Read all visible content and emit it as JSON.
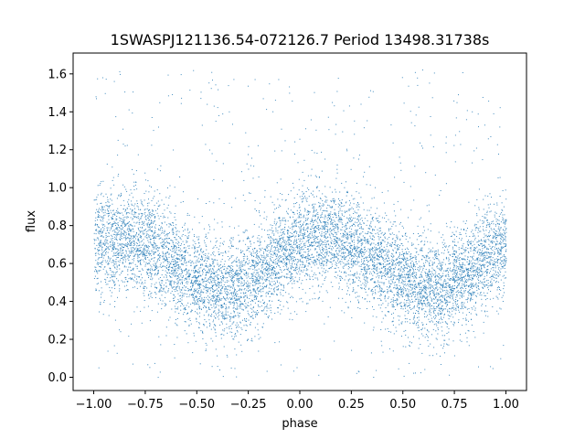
{
  "chart_data": {
    "type": "scatter",
    "title": "1SWASPJ121136.54-072126.7 Period 13498.31738s",
    "xlabel": "phase",
    "ylabel": "flux",
    "xlim": [
      -1.1,
      1.1
    ],
    "ylim": [
      -0.07,
      1.71
    ],
    "xticks": [
      -1.0,
      -0.75,
      -0.5,
      -0.25,
      0.0,
      0.25,
      0.5,
      0.75,
      1.0
    ],
    "xtick_labels": [
      "−1.00",
      "−0.75",
      "−0.50",
      "−0.25",
      "0.00",
      "0.25",
      "0.50",
      "0.75",
      "1.00"
    ],
    "yticks": [
      0.0,
      0.2,
      0.4,
      0.6,
      0.8,
      1.0,
      1.2,
      1.4,
      1.6
    ],
    "ytick_labels": [
      "0.0",
      "0.2",
      "0.4",
      "0.6",
      "0.8",
      "1.0",
      "1.2",
      "1.4",
      "1.6"
    ],
    "grid": false,
    "marker_color": "#1f77b4",
    "series": [
      {
        "phase_range": [
          -1.0,
          1.0
        ],
        "points_approx": 60000,
        "binned_median_flux": [
          {
            "phase": -1.0,
            "flux": 0.7
          },
          {
            "phase": -0.9,
            "flux": 0.74
          },
          {
            "phase": -0.8,
            "flux": 0.73
          },
          {
            "phase": -0.7,
            "flux": 0.68
          },
          {
            "phase": -0.6,
            "flux": 0.6
          },
          {
            "phase": -0.5,
            "flux": 0.52
          },
          {
            "phase": -0.4,
            "flux": 0.46
          },
          {
            "phase": -0.3,
            "flux": 0.47
          },
          {
            "phase": -0.2,
            "flux": 0.55
          },
          {
            "phase": -0.1,
            "flux": 0.64
          },
          {
            "phase": 0.0,
            "flux": 0.7
          },
          {
            "phase": 0.1,
            "flux": 0.74
          },
          {
            "phase": 0.2,
            "flux": 0.73
          },
          {
            "phase": 0.3,
            "flux": 0.68
          },
          {
            "phase": 0.4,
            "flux": 0.6
          },
          {
            "phase": 0.5,
            "flux": 0.52
          },
          {
            "phase": 0.6,
            "flux": 0.46
          },
          {
            "phase": 0.7,
            "flux": 0.47
          },
          {
            "phase": 0.8,
            "flux": 0.55
          },
          {
            "phase": 0.9,
            "flux": 0.64
          },
          {
            "phase": 1.0,
            "flux": 0.7
          }
        ],
        "flux_clip": [
          0.0,
          1.63
        ]
      }
    ]
  }
}
